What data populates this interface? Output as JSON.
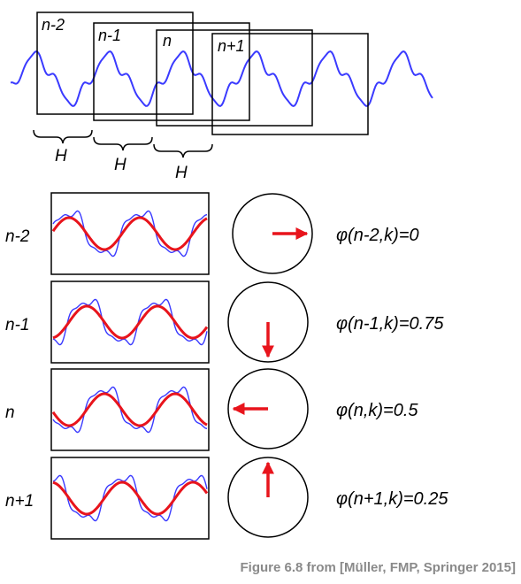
{
  "top_frames": [
    {
      "label": "n-2"
    },
    {
      "label": "n-1"
    },
    {
      "label": "n"
    },
    {
      "label": "n+1"
    }
  ],
  "hop_label": "H",
  "rows": [
    {
      "frame_label": "n-2",
      "phase_text": "φ(n-2,k)=0",
      "phase": 0
    },
    {
      "frame_label": "n-1",
      "phase_text": "φ(n-1,k)=0.75",
      "phase": 0.75
    },
    {
      "frame_label": "n",
      "phase_text": "φ(n,k)=0.5",
      "phase": 0.5
    },
    {
      "frame_label": "n+1",
      "phase_text": "φ(n+1,k)=0.25",
      "phase": 0.25
    }
  ],
  "caption": "Figure 6.8 from [Müller, FMP, Springer 2015]",
  "colors": {
    "signal": "#3a3aff",
    "sinusoid": "#e8141c",
    "arrow": "#e8141c",
    "frame": "#000000",
    "caption": "#8a8a8a"
  }
}
